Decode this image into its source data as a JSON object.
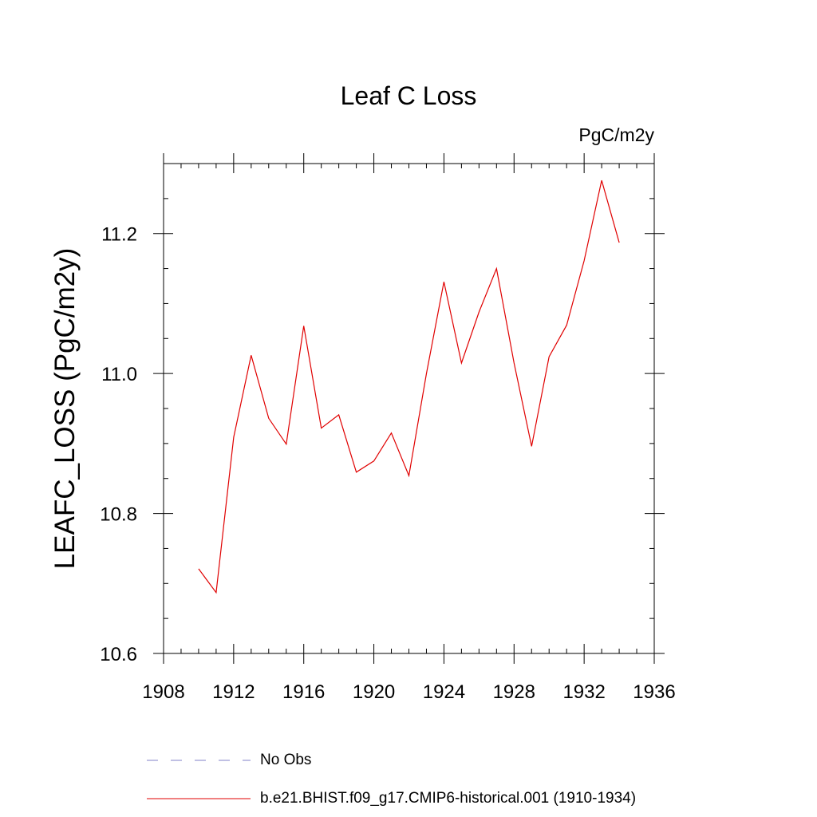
{
  "chart_data": {
    "type": "line",
    "title": "Leaf C Loss",
    "units": "PgC/m2y",
    "ylabel": "LEAFC_LOSS  (PgC/m2y)",
    "xlabel": "",
    "xlim": [
      1908,
      1936
    ],
    "ylim": [
      10.6,
      11.3
    ],
    "xticks": [
      1908,
      1912,
      1916,
      1920,
      1924,
      1928,
      1932,
      1936
    ],
    "xtick_labels": [
      "1908",
      "1912",
      "1916",
      "1920",
      "1924",
      "1928",
      "1932",
      "1936"
    ],
    "yticks": [
      10.6,
      10.8,
      11.0,
      11.2
    ],
    "ytick_labels": [
      "10.6",
      "10.8",
      "11.0",
      "11.2"
    ],
    "x_minor_step": 1,
    "y_minor_step": 0.05,
    "grid": false,
    "series": [
      {
        "name": "b.e21.BHIST.f09_g17.CMIP6-historical.001 (1910-1934)",
        "color": "#e00000",
        "x": [
          1910,
          1911,
          1912,
          1913,
          1914,
          1915,
          1916,
          1917,
          1918,
          1919,
          1920,
          1921,
          1922,
          1923,
          1924,
          1925,
          1926,
          1927,
          1928,
          1929,
          1930,
          1931,
          1932,
          1933,
          1934
        ],
        "y": [
          10.721,
          10.687,
          10.909,
          11.026,
          10.936,
          10.899,
          11.068,
          10.922,
          10.941,
          10.859,
          10.875,
          10.915,
          10.854,
          11.0,
          11.131,
          11.015,
          11.088,
          11.15,
          11.015,
          10.896,
          11.024,
          11.069,
          11.161,
          11.276,
          11.187
        ]
      }
    ],
    "legend": {
      "placement": "bottom-left",
      "entries": [
        {
          "label": "No Obs",
          "color": "#8080c8",
          "style": "dashed"
        },
        {
          "label": "b.e21.BHIST.f09_g17.CMIP6-historical.001 (1910-1934)",
          "color": "#e00000",
          "style": "solid"
        }
      ]
    }
  }
}
